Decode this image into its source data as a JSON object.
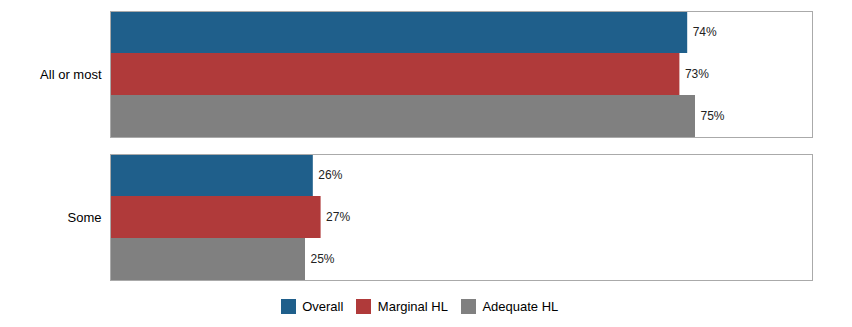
{
  "chart_data": {
    "type": "bar",
    "orientation": "horizontal",
    "categories": [
      "All or most",
      "Some"
    ],
    "series": [
      {
        "name": "Overall",
        "color": "#1F5F8B",
        "values": [
          74,
          26
        ],
        "value_labels": [
          "74%",
          "26%"
        ]
      },
      {
        "name": "Marginal HL",
        "color": "#B03A3A",
        "values": [
          73,
          27
        ],
        "value_labels": [
          "73%",
          "27%"
        ]
      },
      {
        "name": "Adequate HL",
        "color": "#808080",
        "values": [
          75,
          25
        ],
        "value_labels": [
          "75%",
          "25%"
        ]
      }
    ],
    "xlim": [
      0,
      90
    ],
    "data_labels": true,
    "tick_labels": "y",
    "grid": false,
    "legend": "bottom"
  }
}
